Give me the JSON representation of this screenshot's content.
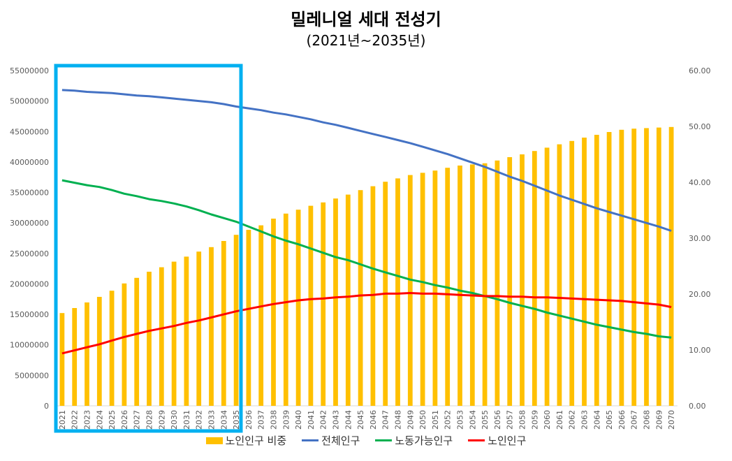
{
  "chart_data": {
    "type": "bar",
    "title": "밀레니얼 세대 전성기",
    "subtitle": "(2021년~2035년)",
    "categories": [
      "2021",
      "2022",
      "2023",
      "2024",
      "2025",
      "2026",
      "2027",
      "2028",
      "2029",
      "2030",
      "2031",
      "2032",
      "2033",
      "2034",
      "2035",
      "2036",
      "2037",
      "2038",
      "2039",
      "2040",
      "2041",
      "2042",
      "2043",
      "2044",
      "2045",
      "2046",
      "2047",
      "2048",
      "2049",
      "2050",
      "2051",
      "2052",
      "2053",
      "2054",
      "2055",
      "2056",
      "2057",
      "2058",
      "2059",
      "2060",
      "2061",
      "2062",
      "2063",
      "2064",
      "2065",
      "2066",
      "2067",
      "2068",
      "2069",
      "2070"
    ],
    "y_left": {
      "ylim": [
        0,
        55000000
      ],
      "ticks": [
        "0",
        "5000000",
        "10000000",
        "15000000",
        "20000000",
        "25000000",
        "30000000",
        "35000000",
        "40000000",
        "45000000",
        "50000000",
        "55000000"
      ]
    },
    "y_right": {
      "ylim": [
        0,
        60
      ],
      "ticks": [
        "0.00",
        "10.00",
        "20.00",
        "30.00",
        "40.00",
        "50.00",
        "60.00"
      ]
    },
    "series": [
      {
        "name": "노인인구 비중",
        "type": "bar",
        "axis": "right",
        "color": "#FFC000",
        "values": [
          16.6,
          17.5,
          18.5,
          19.5,
          20.6,
          21.9,
          22.9,
          24.0,
          24.8,
          25.8,
          26.7,
          27.6,
          28.4,
          29.5,
          30.6,
          31.5,
          32.3,
          33.5,
          34.4,
          35.1,
          35.8,
          36.4,
          37.1,
          37.8,
          38.6,
          39.3,
          40.1,
          40.7,
          41.3,
          41.7,
          42.1,
          42.6,
          43.0,
          43.2,
          43.4,
          43.9,
          44.5,
          45.0,
          45.6,
          46.2,
          46.8,
          47.4,
          48.0,
          48.5,
          49.0,
          49.4,
          49.6,
          49.7,
          49.8,
          49.9
        ]
      },
      {
        "name": "전체인구",
        "type": "line",
        "axis": "left",
        "color": "#4472C4",
        "values": [
          51800000,
          51700000,
          51500000,
          51400000,
          51300000,
          51100000,
          50900000,
          50800000,
          50600000,
          50400000,
          50200000,
          50000000,
          49800000,
          49500000,
          49100000,
          48800000,
          48500000,
          48100000,
          47800000,
          47400000,
          47000000,
          46500000,
          46100000,
          45600000,
          45100000,
          44600000,
          44100000,
          43600000,
          43100000,
          42500000,
          41900000,
          41300000,
          40600000,
          39900000,
          39200000,
          38400000,
          37600000,
          36900000,
          36100000,
          35300000,
          34500000,
          33800000,
          33100000,
          32400000,
          31800000,
          31200000,
          30600000,
          30000000,
          29400000,
          28700000
        ]
      },
      {
        "name": "노동가능인구",
        "type": "line",
        "axis": "left",
        "color": "#00B050",
        "values": [
          37000000,
          36600000,
          36200000,
          35900000,
          35400000,
          34800000,
          34400000,
          33900000,
          33600000,
          33200000,
          32700000,
          32100000,
          31400000,
          30800000,
          30200000,
          29400000,
          28600000,
          27800000,
          27100000,
          26500000,
          25800000,
          25100000,
          24400000,
          23900000,
          23200000,
          22500000,
          21900000,
          21300000,
          20700000,
          20300000,
          19800000,
          19400000,
          18900000,
          18500000,
          18000000,
          17500000,
          16900000,
          16400000,
          15900000,
          15300000,
          14800000,
          14300000,
          13800000,
          13300000,
          12900000,
          12500000,
          12100000,
          11800000,
          11400000,
          11200000
        ]
      },
      {
        "name": "노인인구",
        "type": "line",
        "axis": "left",
        "color": "#FF0000",
        "values": [
          8600000,
          9100000,
          9600000,
          10100000,
          10700000,
          11300000,
          11800000,
          12300000,
          12700000,
          13100000,
          13600000,
          14000000,
          14500000,
          15000000,
          15500000,
          15900000,
          16300000,
          16700000,
          17000000,
          17300000,
          17500000,
          17600000,
          17800000,
          17900000,
          18100000,
          18200000,
          18400000,
          18400000,
          18500000,
          18400000,
          18400000,
          18300000,
          18200000,
          18100000,
          18000000,
          18000000,
          17900000,
          17900000,
          17800000,
          17800000,
          17700000,
          17600000,
          17500000,
          17400000,
          17300000,
          17200000,
          17000000,
          16800000,
          16600000,
          16200000
        ]
      }
    ],
    "highlight": {
      "from": "2021",
      "to": "2035",
      "color": "#00B0F0"
    },
    "legend_placement": "bottom",
    "grid": false
  }
}
